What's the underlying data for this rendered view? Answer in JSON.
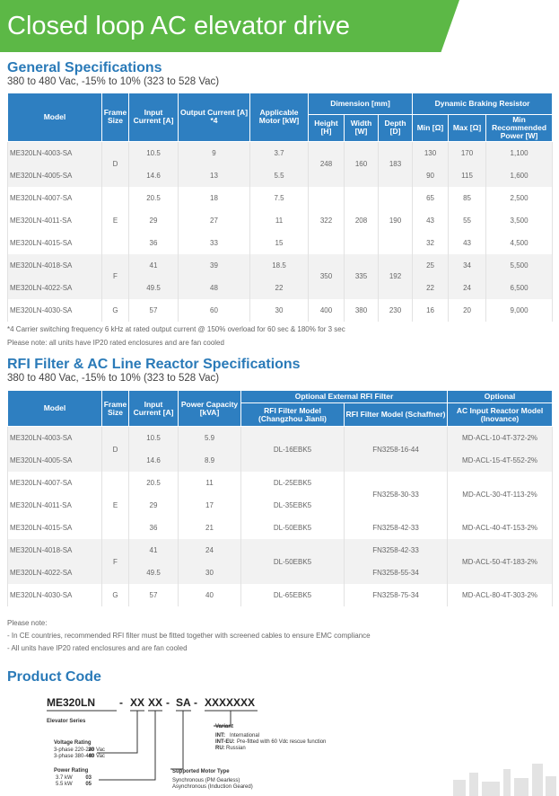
{
  "header": {
    "title": "Closed loop AC elevator drive"
  },
  "general": {
    "title": "General Specifications",
    "subtitle": "380 to 480 Vac, -15% to 10% (323 to 528 Vac)",
    "header_top": [
      "Model",
      "Frame Size",
      "Input Current [A]",
      "Output Current [A] *4",
      "Applicable Motor [kW]",
      "Dimension [mm]",
      "Dynamic Braking Resistor"
    ],
    "header_sub": [
      "Height [H]",
      "Width [W]",
      "Depth [D]",
      "Min [Ω]",
      "Max [Ω]",
      "Min Recommended Power [W]"
    ],
    "rows": [
      [
        "ME320LN-4003-SA",
        "D",
        "10.5",
        "9",
        "3.7",
        "248",
        "160",
        "183",
        "130",
        "170",
        "1,100"
      ],
      [
        "ME320LN-4005-SA",
        "14.6",
        "13",
        "5.5",
        "90",
        "115",
        "1,600"
      ],
      [
        "ME320LN-4007-SA",
        "E",
        "20.5",
        "18",
        "7.5",
        "322",
        "208",
        "190",
        "65",
        "85",
        "2,500"
      ],
      [
        "ME320LN-4011-SA",
        "29",
        "27",
        "11",
        "43",
        "55",
        "3,500"
      ],
      [
        "ME320LN-4015-SA",
        "36",
        "33",
        "15",
        "32",
        "43",
        "4,500"
      ],
      [
        "ME320LN-4018-SA",
        "F",
        "41",
        "39",
        "18.5",
        "350",
        "335",
        "192",
        "25",
        "34",
        "5,500"
      ],
      [
        "ME320LN-4022-SA",
        "49.5",
        "48",
        "22",
        "22",
        "24",
        "6,500"
      ],
      [
        "ME320LN-4030-SA",
        "G",
        "57",
        "60",
        "30",
        "400",
        "380",
        "230",
        "16",
        "20",
        "9,000"
      ]
    ],
    "notes": [
      "*4  Carrier switching frequency 6 kHz at rated output current @ 150% overload for 60 sec & 180% for 3 sec",
      "Please note: all units have IP20 rated enclosures and are fan cooled"
    ]
  },
  "rfi": {
    "title": "RFI Filter & AC Line Reactor Specifications",
    "subtitle": "380 to 480 Vac, -15% to 10% (323 to 528 Vac)",
    "header_top": [
      "Model",
      "Frame Size",
      "Input Current [A]",
      "Power Capacity [kVA]",
      "Optional External RFI Filter",
      "Optional"
    ],
    "header_sub": [
      "RFI Filter Model (Changzhou Jianli)",
      "RFI Filter Model (Schaffner)",
      "AC Input Reactor Model (Inovance)"
    ],
    "rows": [
      [
        "ME320LN-4003-SA",
        "D",
        "10.5",
        "5.9",
        "DL-16EBK5",
        "FN3258-16-44",
        "MD-ACL-10-4T-372-2%"
      ],
      [
        "ME320LN-4005-SA",
        "14.6",
        "8.9",
        "MD-ACL-15-4T-552-2%"
      ],
      [
        "ME320LN-4007-SA",
        "E",
        "20.5",
        "11",
        "DL-25EBK5",
        "FN3258-30-33",
        "MD-ACL-30-4T-113-2%"
      ],
      [
        "ME320LN-4011-SA",
        "29",
        "17",
        "DL-35EBK5"
      ],
      [
        "ME320LN-4015-SA",
        "36",
        "21",
        "DL-50EBK5",
        "FN3258-42-33",
        "MD-ACL-40-4T-153-2%"
      ],
      [
        "ME320LN-4018-SA",
        "F",
        "41",
        "24",
        "DL-50EBK5",
        "FN3258-42-33",
        "MD-ACL-50-4T-183-2%"
      ],
      [
        "ME320LN-4022-SA",
        "49.5",
        "30",
        "FN3258-55-34"
      ],
      [
        "ME320LN-4030-SA",
        "G",
        "57",
        "40",
        "DL-65EBK5",
        "FN3258-75-34",
        "MD-ACL-80-4T-303-2%"
      ]
    ],
    "notes": [
      "Please note:",
      "- In CE countries, recommended RFI filter must be fitted together with screened cables to ensure EMC compliance",
      "- All units have IP20 rated enclosures and are fan cooled"
    ]
  },
  "product_code": {
    "title": "Product Code",
    "code": [
      "ME320LN",
      "-",
      "XX",
      "XX",
      "-",
      "SA",
      "-",
      "XXXXXXX"
    ],
    "series": "Elevator Series",
    "voltage": {
      "title": "Voltage Rating",
      "options": [
        {
          "label": "3-phase 220-240 Vac",
          "code": "20"
        },
        {
          "label": "3-phase 380-480 Vac",
          "code": "40"
        }
      ]
    },
    "power": {
      "title": "Power Rating",
      "options": [
        {
          "label": "3.7 kW",
          "code": "03"
        },
        {
          "label": "5.5 kW",
          "code": "05"
        }
      ]
    },
    "variant": {
      "title": "Variant",
      "options": [
        {
          "code": "INT:",
          "label": "International"
        },
        {
          "code": "INT-EU:",
          "label": "Pre-fitted with 60 Vdc rescue function"
        },
        {
          "code": "RU:",
          "label": "Russian"
        }
      ]
    },
    "motor": {
      "title": "Supported Motor Type",
      "options": [
        "Synchronous (PM Gearless)",
        "Asynchronous (Induction Geared)"
      ]
    }
  }
}
